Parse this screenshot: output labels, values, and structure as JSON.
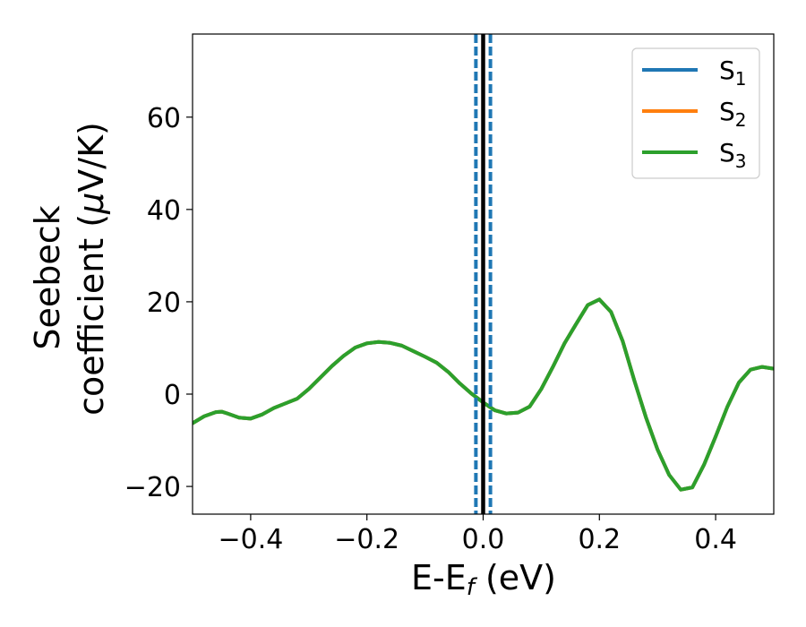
{
  "chart_data": {
    "type": "line",
    "title": "",
    "xlabel": {
      "main": "E-E",
      "sub": "f",
      "tail": " (eV)"
    },
    "ylabel": {
      "line1": "Seebeck",
      "line2_main": "coefficient  (",
      "line2_mu": "μ",
      "line2_tail": "V/K)"
    },
    "xlim": [
      -0.5,
      0.5
    ],
    "ylim": [
      -26,
      78
    ],
    "x_ticks": [
      -0.4,
      -0.2,
      0.0,
      0.2,
      0.4
    ],
    "x_tick_labels": [
      "−0.4",
      "−0.2",
      "0.0",
      "0.2",
      "0.4"
    ],
    "y_ticks": [
      -20,
      0,
      20,
      40,
      60
    ],
    "y_tick_labels": [
      "−20",
      "0",
      "20",
      "40",
      "60"
    ],
    "grid": false,
    "legend_position": "top-right",
    "series": [
      {
        "name": "S",
        "sub": "1",
        "color": "#1f77b4"
      },
      {
        "name": "S",
        "sub": "2",
        "color": "#ff7f0e"
      },
      {
        "name": "S",
        "sub": "3",
        "color": "#2ca02c"
      }
    ],
    "x": [
      -0.5,
      -0.48,
      -0.46,
      -0.45,
      -0.44,
      -0.42,
      -0.4,
      -0.38,
      -0.36,
      -0.34,
      -0.32,
      -0.3,
      -0.28,
      -0.26,
      -0.24,
      -0.22,
      -0.2,
      -0.18,
      -0.16,
      -0.14,
      -0.12,
      -0.1,
      -0.08,
      -0.06,
      -0.04,
      -0.02,
      0.0,
      0.02,
      0.04,
      0.06,
      0.08,
      0.1,
      0.12,
      0.14,
      0.16,
      0.18,
      0.2,
      0.22,
      0.24,
      0.26,
      0.28,
      0.3,
      0.32,
      0.34,
      0.36,
      0.38,
      0.4,
      0.42,
      0.44,
      0.46,
      0.48,
      0.5
    ],
    "y": [
      -6.3,
      -4.8,
      -3.9,
      -3.8,
      -4.2,
      -5.1,
      -5.3,
      -4.4,
      -3.0,
      -2.0,
      -1.0,
      1.1,
      3.6,
      6.1,
      8.3,
      10.1,
      11.0,
      11.3,
      11.1,
      10.5,
      9.3,
      8.1,
      6.8,
      4.8,
      2.3,
      0.1,
      -1.8,
      -3.5,
      -4.2,
      -4.0,
      -2.7,
      1.1,
      5.9,
      11.0,
      15.2,
      19.3,
      20.5,
      17.8,
      11.5,
      3.0,
      -5.0,
      -12.0,
      -17.5,
      -20.7,
      -20.2,
      -15.3,
      -9.2,
      -2.8,
      2.5,
      5.3,
      5.9,
      5.5
    ],
    "vlines": [
      {
        "x": -0.0125,
        "style": "dashed",
        "color": "#1f77b4"
      },
      {
        "x": 0.0,
        "style": "solid",
        "color": "#000000"
      },
      {
        "x": 0.0125,
        "style": "dashed",
        "color": "#1f77b4"
      }
    ]
  }
}
